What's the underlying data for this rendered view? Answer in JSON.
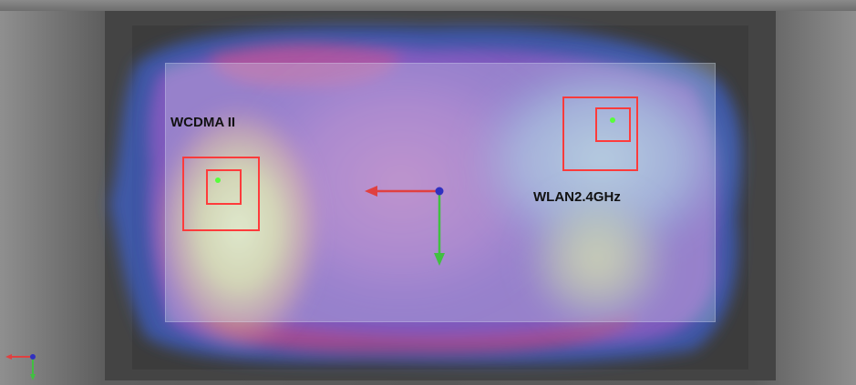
{
  "scene": {
    "background_color": "#585858",
    "plane_tint": "#d7e6f0"
  },
  "antennas": [
    {
      "label": "WCDMA II",
      "marker_color": "#ff3b3b",
      "point_color": "#56ff3a"
    },
    {
      "label": "WLAN2.4GHz",
      "marker_color": "#ff3b3b",
      "point_color": "#56ff3a"
    }
  ],
  "axes": {
    "x_color": "#e04040",
    "y_color": "#40c040",
    "z_color": "#3030c0"
  },
  "icons": {
    "origin_triad": "xyz-axis-triad-icon",
    "corner_orientation": "orientation-axes-icon"
  }
}
